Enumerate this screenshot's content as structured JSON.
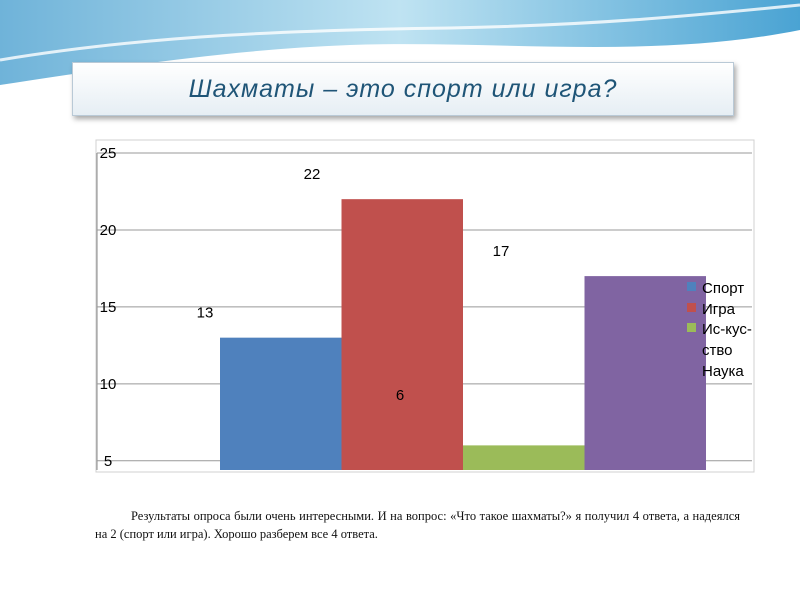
{
  "slide_title": "Шахматы – это спорт или игра?",
  "paragraph": "Результаты опроса были очень интересными. И на вопрос: «Что такое шахматы?» я получил 4 ответа, а надеялся на 2 (спорт или игра). Хорошо разберем все 4 ответа.",
  "chart_data": {
    "type": "bar",
    "categories": [
      null
    ],
    "series": [
      {
        "name": "Спорт",
        "color": "#4f81bd",
        "values": [
          13
        ]
      },
      {
        "name": "Игра",
        "color": "#c0504d",
        "values": [
          22
        ]
      },
      {
        "name": "Ис-кус-ство",
        "color": "#9bbb59",
        "values": [
          6
        ]
      },
      {
        "name": "Наука",
        "color": "#8064a2",
        "values": [
          17
        ]
      }
    ],
    "ylim": [
      4.4,
      25
    ],
    "yticks": [
      5,
      10,
      15,
      20,
      25
    ],
    "grid": true,
    "legend": "right"
  }
}
